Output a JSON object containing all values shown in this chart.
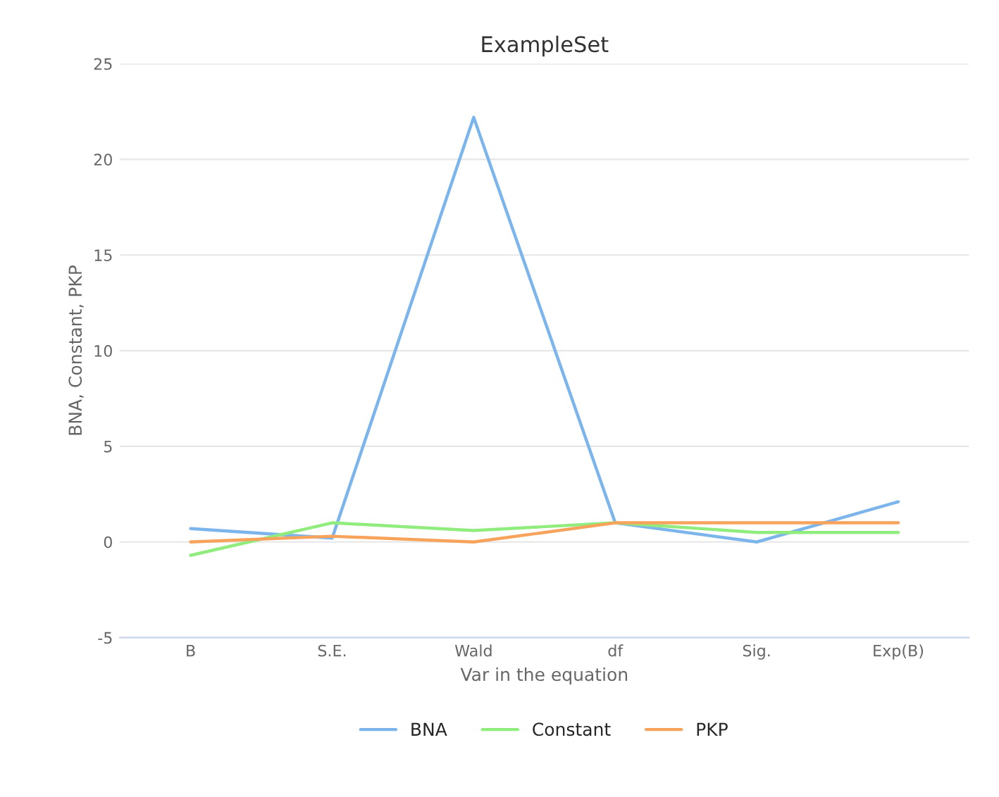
{
  "chart_data": {
    "type": "line",
    "title": "ExampleSet",
    "xlabel": "Var in the equation",
    "ylabel": "BNA, Constant, PKP",
    "categories": [
      "B",
      "S.E.",
      "Wald",
      "df",
      "Sig.",
      "Exp(B)"
    ],
    "series": [
      {
        "name": "BNA",
        "color": "#7cb5ec",
        "values": [
          0.7,
          0.2,
          22.2,
          1.0,
          0.0,
          2.1
        ]
      },
      {
        "name": "Constant",
        "color": "#90ed7d",
        "values": [
          -0.7,
          1.0,
          0.6,
          1.0,
          0.5,
          0.5
        ]
      },
      {
        "name": "PKP",
        "color": "#f7a35c",
        "values": [
          0.0,
          0.3,
          0.0,
          1.0,
          1.0,
          1.0
        ]
      }
    ],
    "ylim": [
      -5,
      25
    ],
    "yticks": [
      -5,
      0,
      5,
      10,
      15,
      20,
      25
    ],
    "grid": "y",
    "legend": "bottom",
    "marker": "none",
    "line_style": "solid"
  }
}
